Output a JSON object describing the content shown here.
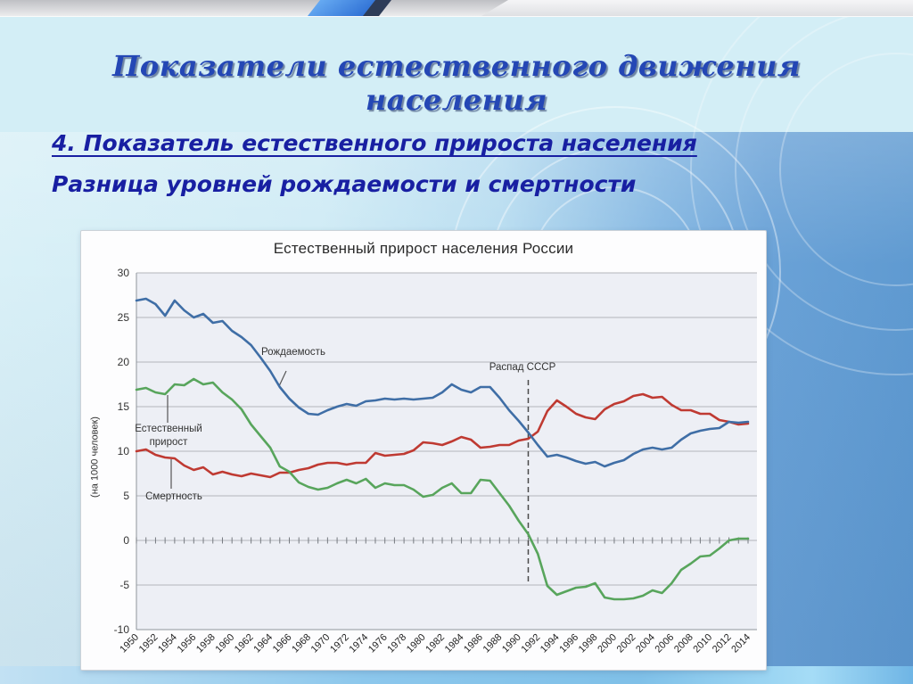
{
  "slide": {
    "title": "Показатели естественного движения населения",
    "subtitle_line1": "4. Показатель естественного прироста населения",
    "subtitle_line2": "Разница уровней рождаемости и смертности"
  },
  "chart_data": {
    "type": "line",
    "title": "Естественный прирост населения России",
    "xlabel": "",
    "ylabel": "(на 1000 человек)",
    "ylim": [
      -10,
      30
    ],
    "ytick_step": 5,
    "xlim": [
      1950,
      2014
    ],
    "xtick_step": 2,
    "grid": true,
    "legend_position": "none",
    "annotations": {
      "birth_label": "Рождаемость",
      "growth_label_line1": "Естественный",
      "growth_label_line2": "прирост",
      "death_label": "Смертность",
      "event_label": "Распад СССР",
      "event_year": 1991
    },
    "colors": {
      "birth": "#3f6ea6",
      "death": "#bf3a32",
      "growth": "#58a55c"
    },
    "x": [
      1950,
      1951,
      1952,
      1953,
      1954,
      1955,
      1956,
      1957,
      1958,
      1959,
      1960,
      1961,
      1962,
      1963,
      1964,
      1965,
      1966,
      1967,
      1968,
      1969,
      1970,
      1971,
      1972,
      1973,
      1974,
      1975,
      1976,
      1977,
      1978,
      1979,
      1980,
      1981,
      1982,
      1983,
      1984,
      1985,
      1986,
      1987,
      1988,
      1989,
      1990,
      1991,
      1992,
      1993,
      1994,
      1995,
      1996,
      1997,
      1998,
      1999,
      2000,
      2001,
      2002,
      2003,
      2004,
      2005,
      2006,
      2007,
      2008,
      2009,
      2010,
      2011,
      2012,
      2013,
      2014
    ],
    "series": [
      {
        "name": "Рождаемость",
        "key": "birth",
        "values": [
          26.9,
          27.1,
          26.5,
          25.2,
          26.9,
          25.8,
          25.0,
          25.4,
          24.4,
          24.6,
          23.5,
          22.8,
          21.9,
          20.5,
          19.0,
          17.2,
          15.9,
          14.9,
          14.2,
          14.1,
          14.6,
          15.0,
          15.3,
          15.1,
          15.6,
          15.7,
          15.9,
          15.8,
          15.9,
          15.8,
          15.9,
          16.0,
          16.6,
          17.5,
          16.9,
          16.6,
          17.2,
          17.2,
          16.0,
          14.6,
          13.4,
          12.1,
          10.7,
          9.4,
          9.6,
          9.3,
          8.9,
          8.6,
          8.8,
          8.3,
          8.7,
          9.0,
          9.7,
          10.2,
          10.4,
          10.2,
          10.4,
          11.3,
          12.0,
          12.3,
          12.5,
          12.6,
          13.3,
          13.2,
          13.3
        ]
      },
      {
        "name": "Смертность",
        "key": "death",
        "values": [
          10.0,
          10.2,
          9.6,
          9.3,
          9.2,
          8.4,
          7.9,
          8.2,
          7.4,
          7.7,
          7.4,
          7.2,
          7.5,
          7.3,
          7.1,
          7.6,
          7.6,
          7.9,
          8.1,
          8.5,
          8.7,
          8.7,
          8.5,
          8.7,
          8.7,
          9.8,
          9.5,
          9.6,
          9.7,
          10.1,
          11.0,
          10.9,
          10.7,
          11.1,
          11.6,
          11.3,
          10.4,
          10.5,
          10.7,
          10.7,
          11.2,
          11.4,
          12.2,
          14.5,
          15.7,
          15.0,
          14.2,
          13.8,
          13.6,
          14.7,
          15.3,
          15.6,
          16.2,
          16.4,
          16.0,
          16.1,
          15.2,
          14.6,
          14.6,
          14.2,
          14.2,
          13.5,
          13.3,
          13.0,
          13.1
        ]
      },
      {
        "name": "Естественный прирост",
        "key": "growth",
        "values": [
          16.9,
          17.1,
          16.6,
          16.4,
          17.5,
          17.4,
          18.1,
          17.5,
          17.7,
          16.6,
          15.8,
          14.7,
          13.0,
          11.7,
          10.4,
          8.3,
          7.7,
          6.5,
          6.0,
          5.7,
          5.9,
          6.4,
          6.8,
          6.4,
          6.9,
          5.9,
          6.4,
          6.2,
          6.2,
          5.7,
          4.9,
          5.1,
          5.9,
          6.4,
          5.3,
          5.3,
          6.8,
          6.7,
          5.3,
          3.9,
          2.2,
          0.7,
          -1.5,
          -5.1,
          -6.1,
          -5.7,
          -5.3,
          -5.2,
          -4.8,
          -6.4,
          -6.6,
          -6.6,
          -6.5,
          -6.2,
          -5.6,
          -5.9,
          -4.8,
          -3.3,
          -2.6,
          -1.8,
          -1.7,
          -0.9,
          0.0,
          0.2,
          0.2
        ]
      }
    ]
  }
}
